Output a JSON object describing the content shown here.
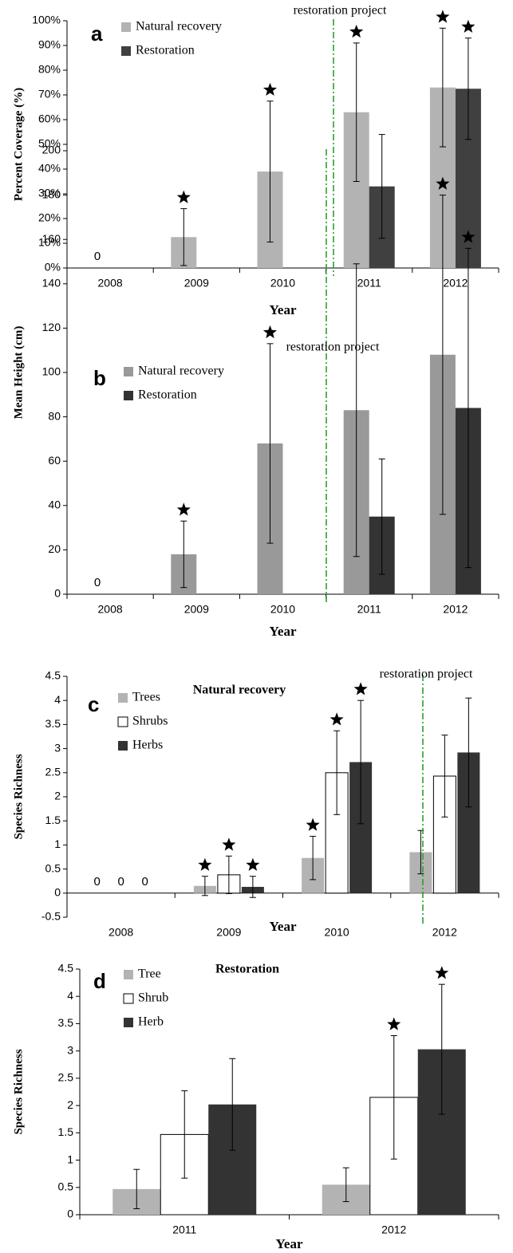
{
  "chart_data": [
    {
      "type": "bar",
      "panel": "a",
      "ylabel": "Percent Coverage  (%)",
      "xlabel": "Year",
      "annotation": "restoration project",
      "categories": [
        "2008",
        "2009",
        "2010",
        "2011",
        "2012"
      ],
      "series": [
        {
          "name": "Natural recovery",
          "color": "#b3b3b3",
          "values": [
            0,
            12.5,
            39,
            63,
            73
          ],
          "errors": [
            null,
            11.5,
            28.5,
            28,
            24
          ]
        },
        {
          "name": "Restoration",
          "color": "#404040",
          "values": [
            null,
            null,
            null,
            33,
            72.5
          ],
          "errors": [
            null,
            null,
            null,
            21,
            20.5
          ]
        }
      ],
      "ylim": [
        0,
        100
      ],
      "yticks": [
        {
          "value": 0,
          "label": "0%"
        },
        {
          "value": 10,
          "label": "10%"
        },
        {
          "value": 20,
          "label": "20%"
        },
        {
          "value": 30,
          "label": "30%"
        },
        {
          "value": 40,
          "label": "40%"
        },
        {
          "value": 50,
          "label": "50%"
        },
        {
          "value": 60,
          "label": "60%"
        },
        {
          "value": 70,
          "label": "70%"
        },
        {
          "value": 80,
          "label": "80%"
        },
        {
          "value": 90,
          "label": "90%"
        },
        {
          "value": 100,
          "label": "100%"
        }
      ]
    },
    {
      "type": "bar",
      "panel": "b",
      "ylabel": "Mean Height (cm)",
      "xlabel": "Year",
      "annotation": "restoration project",
      "categories": [
        "2008",
        "2009",
        "2010",
        "2011",
        "2012"
      ],
      "series": [
        {
          "name": "Natural recovery",
          "color": "#999999",
          "values": [
            0,
            18,
            68,
            83,
            108
          ],
          "errors": [
            null,
            15,
            45,
            66,
            72
          ]
        },
        {
          "name": "Restoration",
          "color": "#333333",
          "values": [
            null,
            null,
            null,
            35,
            84
          ],
          "errors": [
            null,
            null,
            null,
            26,
            72
          ]
        }
      ],
      "ylim": [
        0,
        200
      ],
      "yticks": [
        0,
        20,
        40,
        60,
        80,
        100,
        120,
        140,
        160,
        180,
        200
      ]
    },
    {
      "type": "bar",
      "panel": "c",
      "title": "Natural recovery",
      "ylabel": "Species Richness",
      "xlabel": "Year",
      "annotation": "restoration project",
      "categories": [
        "2008",
        "2009",
        "2010",
        "2012"
      ],
      "series": [
        {
          "name": "Trees",
          "color": "#b3b3b3",
          "values": [
            0,
            0.15,
            0.73,
            0.85
          ],
          "errors": [
            null,
            0.2,
            0.45,
            0.45
          ]
        },
        {
          "name": "Shrubs",
          "color": "#ffffff",
          "values": [
            0,
            0.38,
            2.5,
            2.43
          ],
          "errors": [
            null,
            0.39,
            0.87,
            0.85
          ]
        },
        {
          "name": "Herbs",
          "color": "#333333",
          "values": [
            0,
            0.13,
            2.72,
            2.92
          ],
          "errors": [
            null,
            0.22,
            1.28,
            1.13
          ]
        }
      ],
      "ylim": [
        -0.5,
        4.5
      ],
      "yticks": [
        -0.5,
        0,
        0.5,
        1,
        1.5,
        2,
        2.5,
        3,
        3.5,
        4,
        4.5
      ]
    },
    {
      "type": "bar",
      "panel": "d",
      "title": "Restoration",
      "ylabel": "Species Richness",
      "xlabel": "Year",
      "categories": [
        "2011",
        "2012"
      ],
      "series": [
        {
          "name": "Tree",
          "color": "#b3b3b3",
          "values": [
            0.47,
            0.55
          ],
          "errors": [
            0.36,
            0.31
          ]
        },
        {
          "name": "Shrub",
          "color": "#ffffff",
          "values": [
            1.47,
            2.15
          ],
          "errors": [
            0.8,
            1.13
          ]
        },
        {
          "name": "Herb",
          "color": "#333333",
          "values": [
            2.02,
            3.03
          ],
          "errors": [
            0.84,
            1.19
          ]
        }
      ],
      "ylim": [
        0,
        4.5
      ],
      "yticks": [
        0,
        0.5,
        1,
        1.5,
        2,
        2.5,
        3,
        3.5,
        4,
        4.5
      ]
    }
  ]
}
